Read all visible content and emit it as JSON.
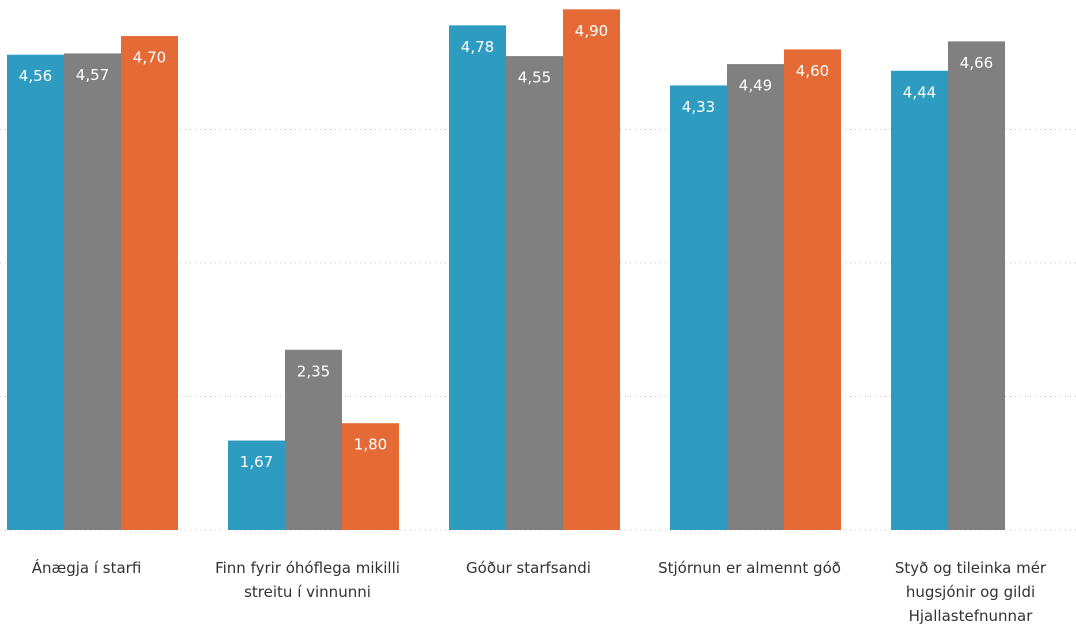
{
  "chart_data": {
    "type": "bar",
    "categories": [
      "Ánægja í starfi",
      "Finn fyrir óhóflega mikilli streitu í vinnunni",
      "Góður starfsandi",
      "Stjórnun er almennt góð",
      "Styð og tileinka mér hugsjónir og gildi Hjallastefnunnar"
    ],
    "series": [
      {
        "color": "#2e9bc0",
        "values": [
          4.56,
          1.67,
          4.78,
          4.33,
          4.44
        ],
        "value_labels": [
          "4,56",
          "1,67",
          "4,78",
          "4,33",
          "4,44"
        ]
      },
      {
        "color": "#808080",
        "values": [
          4.57,
          2.35,
          4.55,
          4.49,
          4.66
        ],
        "value_labels": [
          "4,57",
          "2,35",
          "4,55",
          "4,49",
          "4,66"
        ]
      },
      {
        "color": "#e46b36",
        "values": [
          4.7,
          1.8,
          4.9,
          4.6,
          null
        ],
        "value_labels": [
          "4,70",
          "1,80",
          "4,90",
          "4,60",
          null
        ]
      }
    ],
    "ylim": [
      1,
      5
    ],
    "yticks": [
      1,
      2,
      3,
      4
    ],
    "grid": true
  }
}
